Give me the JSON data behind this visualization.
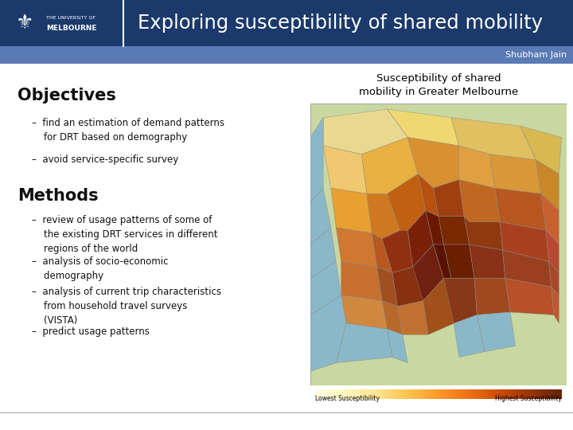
{
  "title": "Exploring susceptibility of shared mobility",
  "subtitle": "Shubham Jain",
  "header_bg": "#1b3a6b",
  "header_text_color": "#ffffff",
  "subtitle_bg": "#5a7ab5",
  "body_bg": "#ffffff",
  "body_text_color": "#111111",
  "objectives_title": "Objectives",
  "objectives_bullets": [
    "–  find an estimation of demand patterns\n    for DRT based on demography",
    "–  avoid service-specific survey"
  ],
  "methods_title": "Methods",
  "methods_bullets": [
    "–  review of usage patterns of some of\n    the existing DRT services in different\n    regions of the world",
    "–  analysis of socio-economic\n    demography",
    "–  analysis of current trip characteristics\n    from household travel surveys\n    (VISTA)",
    "–  predict usage patterns"
  ],
  "map_title": "Susceptibility of shared\nmobility in Greater Melbourne",
  "map_title_color": "#000000",
  "footer_line_color": "#aaaaaa",
  "divider_color": "#ffffff",
  "logo_text1": "THE UNIVERSITY OF",
  "logo_text2": "MELBOURNE"
}
